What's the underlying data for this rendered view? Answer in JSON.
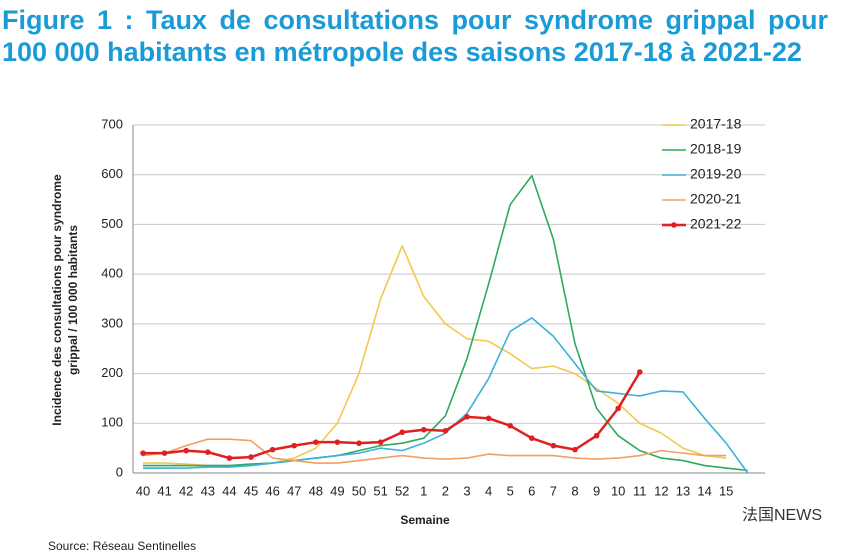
{
  "chart_data": {
    "type": "line",
    "title": "Figure 1 : Taux de consultations pour syndrome grippal pour 100 000 habitants en métropole des saisons 2017-18 à 2021-22",
    "ylabel": [
      "Incidence des consultations pour syndrome",
      "grippal / 100 000 habitants"
    ],
    "xlabel": "Semaine",
    "source": "Source: Réseau Sentinelles",
    "watermark": "法国NEWS",
    "categories": [
      "40",
      "41",
      "42",
      "43",
      "44",
      "45",
      "46",
      "47",
      "48",
      "49",
      "50",
      "51",
      "52",
      "1",
      "2",
      "3",
      "4",
      "5",
      "6",
      "7",
      "8",
      "9",
      "10",
      "11",
      "12",
      "13",
      "14",
      "15",
      null
    ],
    "ylim": [
      0,
      700
    ],
    "yticks": [
      0,
      100,
      200,
      300,
      400,
      500,
      600,
      700
    ],
    "grid": true,
    "legend": "upper right",
    "series": [
      {
        "name": "2017-18",
        "color": "#f2c94c",
        "values": [
          20,
          20,
          18,
          15,
          15,
          15,
          20,
          30,
          50,
          100,
          200,
          350,
          457,
          355,
          300,
          270,
          265,
          240,
          210,
          215,
          200,
          170,
          140,
          100,
          80,
          50,
          35,
          30,
          null
        ]
      },
      {
        "name": "2018-19",
        "color": "#2eaa5c",
        "values": [
          15,
          15,
          15,
          15,
          15,
          18,
          20,
          25,
          30,
          35,
          45,
          55,
          60,
          70,
          115,
          230,
          380,
          540,
          598,
          470,
          260,
          130,
          75,
          45,
          30,
          25,
          15,
          10,
          5
        ]
      },
      {
        "name": "2019-20",
        "color": "#3bb3d9",
        "values": [
          10,
          10,
          10,
          12,
          12,
          15,
          20,
          25,
          30,
          35,
          40,
          50,
          45,
          60,
          80,
          120,
          190,
          285,
          312,
          275,
          220,
          165,
          160,
          155,
          165,
          163,
          110,
          60,
          0
        ]
      },
      {
        "name": "2020-21",
        "color": "#f0a060",
        "values": [
          35,
          40,
          55,
          68,
          68,
          65,
          30,
          25,
          20,
          20,
          25,
          30,
          35,
          30,
          28,
          30,
          38,
          35,
          35,
          35,
          30,
          28,
          30,
          35,
          45,
          40,
          35,
          35,
          null
        ]
      },
      {
        "name": "2021-22",
        "color": "#e02020",
        "markers": true,
        "values": [
          40,
          40,
          45,
          42,
          30,
          32,
          47,
          55,
          62,
          62,
          60,
          62,
          82,
          87,
          85,
          113,
          110,
          95,
          70,
          55,
          47,
          75,
          130,
          203,
          null,
          null,
          null,
          null,
          null
        ]
      }
    ]
  }
}
